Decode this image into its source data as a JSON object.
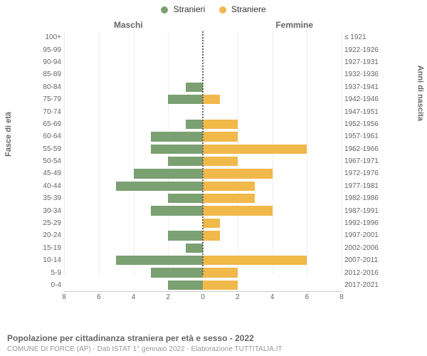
{
  "legend": {
    "male": {
      "label": "Stranieri",
      "color": "#7ba072"
    },
    "female": {
      "label": "Straniere",
      "color": "#f1b84a"
    }
  },
  "gender_titles": {
    "male": "Maschi",
    "female": "Femmine"
  },
  "axis_labels": {
    "left": "Fasce di età",
    "right": "Anni di nascita"
  },
  "x_axis": {
    "max": 8,
    "ticks": [
      8,
      6,
      4,
      2,
      0,
      2,
      4,
      6,
      8
    ]
  },
  "colors": {
    "male_bar": "#7ba072",
    "female_bar": "#f1b84a",
    "grid": "#eeeeee",
    "center_line": "#666666",
    "text": "#666666",
    "background": "#ffffff"
  },
  "pyramid": {
    "rows": [
      {
        "age": "100+",
        "birth": "≤ 1921",
        "m": 0,
        "f": 0
      },
      {
        "age": "95-99",
        "birth": "1922-1926",
        "m": 0,
        "f": 0
      },
      {
        "age": "90-94",
        "birth": "1927-1931",
        "m": 0,
        "f": 0
      },
      {
        "age": "85-89",
        "birth": "1932-1936",
        "m": 0,
        "f": 0
      },
      {
        "age": "80-84",
        "birth": "1937-1941",
        "m": 1,
        "f": 0
      },
      {
        "age": "75-79",
        "birth": "1942-1946",
        "m": 2,
        "f": 1
      },
      {
        "age": "70-74",
        "birth": "1947-1951",
        "m": 0,
        "f": 0
      },
      {
        "age": "65-69",
        "birth": "1952-1956",
        "m": 1,
        "f": 2
      },
      {
        "age": "60-64",
        "birth": "1957-1961",
        "m": 3,
        "f": 2
      },
      {
        "age": "55-59",
        "birth": "1962-1966",
        "m": 3,
        "f": 6
      },
      {
        "age": "50-54",
        "birth": "1967-1971",
        "m": 2,
        "f": 2
      },
      {
        "age": "45-49",
        "birth": "1972-1976",
        "m": 4,
        "f": 4
      },
      {
        "age": "40-44",
        "birth": "1977-1981",
        "m": 5,
        "f": 3
      },
      {
        "age": "35-39",
        "birth": "1982-1986",
        "m": 2,
        "f": 3
      },
      {
        "age": "30-34",
        "birth": "1987-1991",
        "m": 3,
        "f": 4
      },
      {
        "age": "25-29",
        "birth": "1992-1996",
        "m": 0,
        "f": 1
      },
      {
        "age": "20-24",
        "birth": "1997-2001",
        "m": 2,
        "f": 1
      },
      {
        "age": "15-19",
        "birth": "2002-2006",
        "m": 1,
        "f": 0
      },
      {
        "age": "10-14",
        "birth": "2007-2011",
        "m": 5,
        "f": 6
      },
      {
        "age": "5-9",
        "birth": "2012-2016",
        "m": 3,
        "f": 2
      },
      {
        "age": "0-4",
        "birth": "2017-2021",
        "m": 2,
        "f": 2
      }
    ]
  },
  "caption": "Popolazione per cittadinanza straniera per età e sesso - 2022",
  "subcaption": "COMUNE DI FORCE (AP) - Dati ISTAT 1° gennaio 2022 - Elaborazione TUTTITALIA.IT"
}
